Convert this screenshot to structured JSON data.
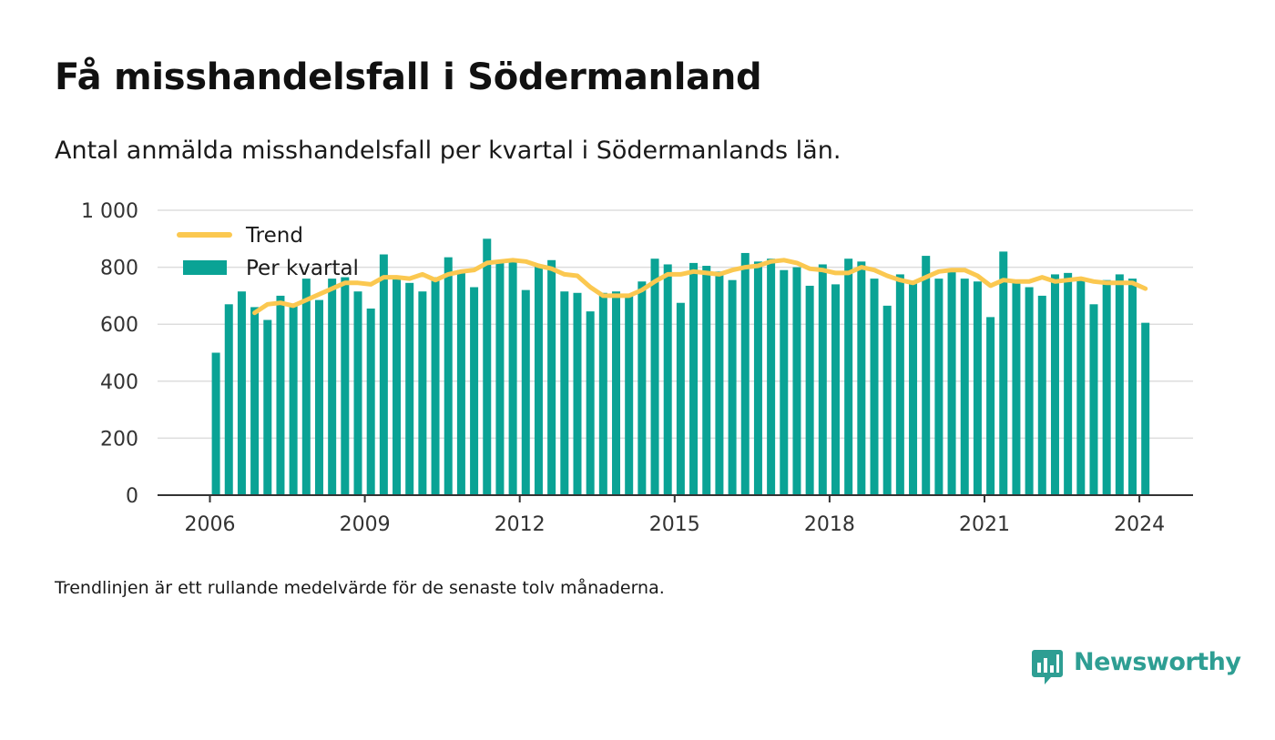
{
  "page": {
    "title": "Få misshandelsfall i Södermanland",
    "subtitle": "Antal anmälda misshandelsfall per kvartal i Södermanlands län.",
    "footnote": "Trendlinjen är ett rullande medelvärde för de senaste tolv månaderna.",
    "brand": "Newsworthy"
  },
  "colors": {
    "bar": "#0aa395",
    "trend": "#fbc850",
    "grid": "#dddddd",
    "axis": "#333333",
    "brand": "#2e9e93"
  },
  "chart_data": {
    "type": "bar",
    "title": "Få misshandelsfall i Södermanland",
    "subtitle": "Antal anmälda misshandelsfall per kvartal i Södermanlands län.",
    "x_ticks": [
      "2006",
      "2009",
      "2012",
      "2015",
      "2018",
      "2021",
      "2024"
    ],
    "y_ticks": [
      "0",
      "200",
      "400",
      "600",
      "800",
      "1 000"
    ],
    "ylim": [
      0,
      1000
    ],
    "grid": true,
    "legend_position": "top-left",
    "period_start": "2006 Q1",
    "period_end": "2024 Q1",
    "series": [
      {
        "name": "Per kvartal",
        "type": "bar",
        "values": [
          500,
          670,
          715,
          660,
          615,
          700,
          665,
          760,
          685,
          760,
          765,
          715,
          655,
          845,
          765,
          745,
          715,
          765,
          835,
          790,
          730,
          900,
          820,
          825,
          720,
          805,
          825,
          715,
          710,
          645,
          710,
          715,
          700,
          750,
          830,
          810,
          675,
          815,
          805,
          785,
          755,
          850,
          820,
          830,
          790,
          800,
          735,
          810,
          740,
          830,
          820,
          760,
          665,
          775,
          750,
          840,
          760,
          790,
          760,
          750,
          625,
          855,
          745,
          730,
          700,
          775,
          780,
          755,
          670,
          755,
          775,
          760,
          605
        ]
      },
      {
        "name": "Trend",
        "type": "line",
        "values": [
          null,
          null,
          null,
          640,
          670,
          675,
          665,
          685,
          705,
          725,
          745,
          745,
          740,
          765,
          765,
          760,
          775,
          755,
          775,
          785,
          790,
          815,
          820,
          825,
          820,
          805,
          795,
          775,
          770,
          730,
          700,
          700,
          700,
          720,
          750,
          775,
          775,
          785,
          780,
          775,
          790,
          800,
          805,
          820,
          825,
          815,
          795,
          790,
          780,
          780,
          800,
          790,
          770,
          755,
          745,
          765,
          785,
          790,
          790,
          770,
          735,
          755,
          750,
          750,
          765,
          750,
          755,
          760,
          750,
          745,
          745,
          745,
          725
        ]
      }
    ]
  }
}
